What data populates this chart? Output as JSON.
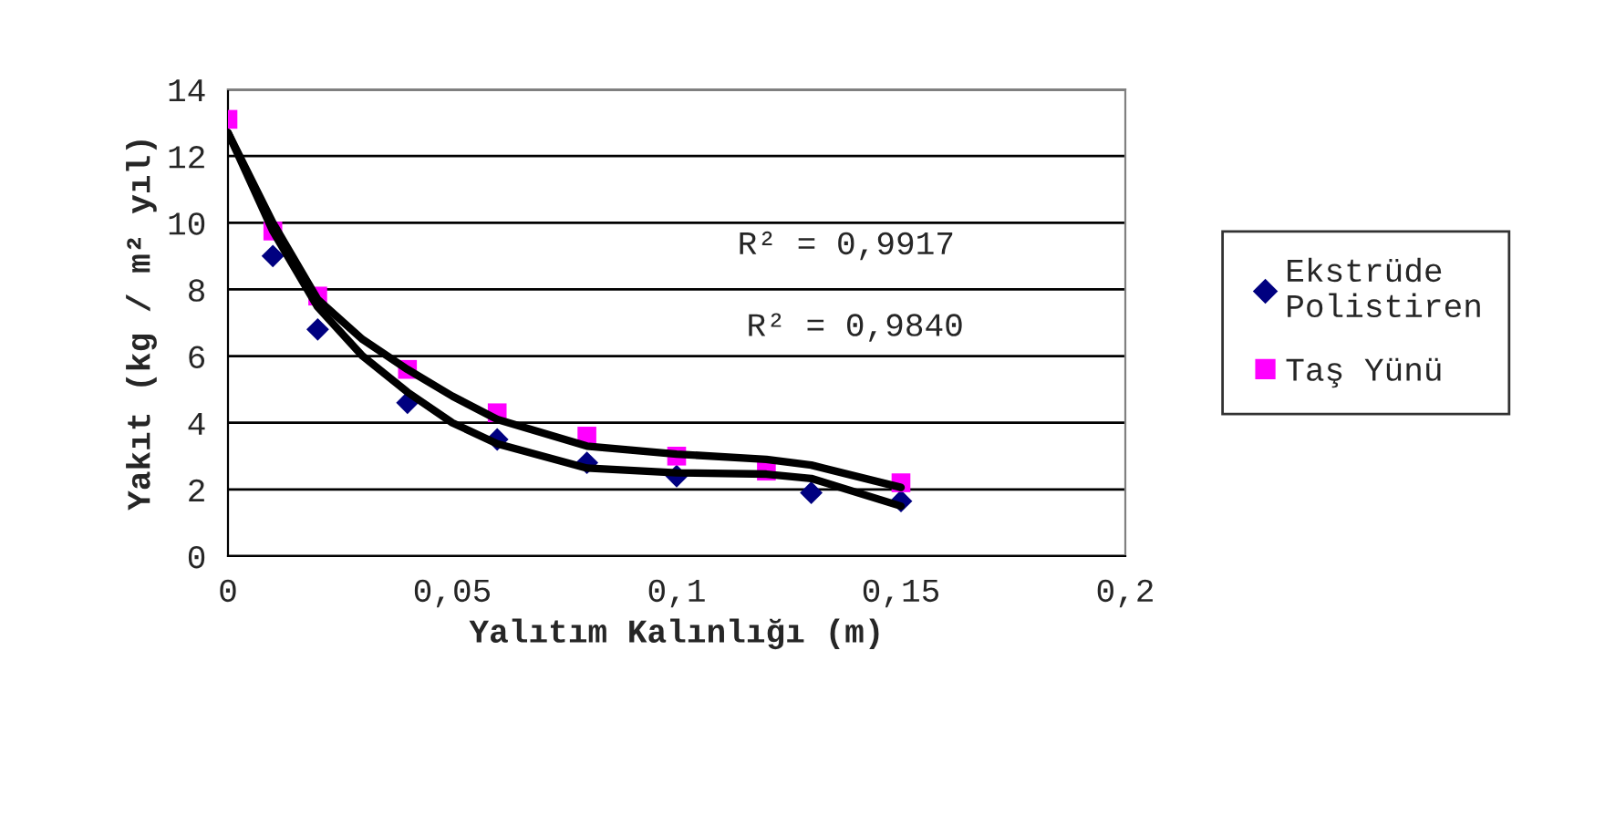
{
  "chart_data": {
    "type": "scatter",
    "xlabel": "Yalıtım Kalınlığı (m)",
    "ylabel": "Yakıt (kg / m² yıl)",
    "xlim": [
      0,
      0.2
    ],
    "xticks": [
      0,
      {
        "value": 0.05,
        "label": "0,05"
      },
      {
        "value": 0.1,
        "label": "0,1"
      },
      {
        "value": 0.15,
        "label": "0,15"
      },
      {
        "value": 0.2,
        "label": "0,2"
      }
    ],
    "ylim": [
      0,
      14
    ],
    "yticks": [
      0,
      2,
      4,
      6,
      8,
      10,
      12,
      14
    ],
    "grid": "y",
    "legend": "right",
    "series": [
      {
        "name": "Ekstrüde Polistiren",
        "color": "#000080",
        "marker": "diamond",
        "x": [
          0.01,
          0.02,
          0.04,
          0.06,
          0.08,
          0.1,
          0.13,
          0.15
        ],
        "values": [
          9.0,
          6.8,
          4.6,
          3.5,
          2.8,
          2.4,
          1.9,
          1.65
        ]
      },
      {
        "name": "Taş Yünü",
        "color": "#ff00ff",
        "marker": "square",
        "x": [
          0,
          0.01,
          0.02,
          0.04,
          0.06,
          0.08,
          0.1,
          0.12,
          0.15
        ],
        "values": [
          13.1,
          9.75,
          7.8,
          5.6,
          4.3,
          3.6,
          3.0,
          2.55,
          2.2
        ]
      },
      {
        "type": "line",
        "color": "#000000",
        "marker": "none",
        "x": [
          0,
          0.01,
          0.02,
          0.03,
          0.04,
          0.05,
          0.06,
          0.08,
          0.1,
          0.12,
          0.13,
          0.15
        ],
        "values": [
          12.7,
          10.0,
          7.7,
          6.5,
          5.6,
          4.8,
          4.1,
          3.3,
          3.06,
          2.9,
          2.73,
          2.06
        ]
      },
      {
        "type": "line",
        "color": "#000000",
        "marker": "none",
        "x": [
          0,
          0.01,
          0.02,
          0.03,
          0.04,
          0.05,
          0.06,
          0.08,
          0.1,
          0.12,
          0.13,
          0.15
        ],
        "values": [
          12.7,
          9.75,
          7.47,
          6.0,
          4.92,
          4.0,
          3.37,
          2.64,
          2.5,
          2.46,
          2.33,
          1.5
        ]
      }
    ],
    "annotations": [
      "R² = 0,9917",
      "R² = 0,9840"
    ]
  }
}
